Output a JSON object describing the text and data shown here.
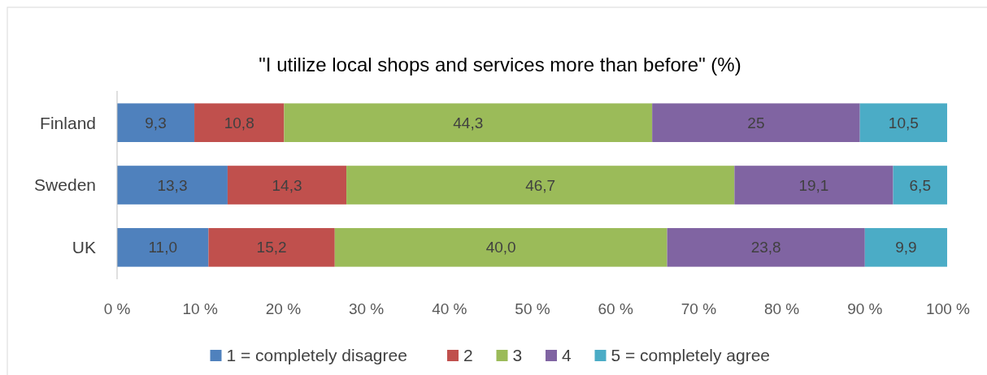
{
  "chart_data": {
    "type": "bar",
    "orientation": "horizontal",
    "stacked": true,
    "title": "\"I utilize local shops and services more than before\" (%)",
    "categories": [
      "Finland",
      "Sweden",
      "UK"
    ],
    "series": [
      {
        "name": "1 = completely disagree",
        "color": "#4f81bd",
        "values": [
          9.3,
          13.3,
          11.0
        ],
        "value_labels": [
          "9,3",
          "13,3",
          "11,0"
        ]
      },
      {
        "name": "2",
        "color": "#c0504d",
        "values": [
          10.8,
          14.3,
          15.2
        ],
        "value_labels": [
          "10,8",
          "14,3",
          "15,2"
        ]
      },
      {
        "name": "3",
        "color": "#9bbb59",
        "values": [
          44.3,
          46.7,
          40.0
        ],
        "value_labels": [
          "44,3",
          "46,7",
          "40,0"
        ]
      },
      {
        "name": "4",
        "color": "#8064a2",
        "values": [
          25,
          19.1,
          23.8
        ],
        "value_labels": [
          "25",
          "19,1",
          "23,8"
        ]
      },
      {
        "name": "5 = completely agree",
        "color": "#4bacc6",
        "values": [
          10.5,
          6.5,
          9.9
        ],
        "value_labels": [
          "10,5",
          "6,5",
          "9,9"
        ]
      }
    ],
    "xlim": [
      0,
      100
    ],
    "xticks": [
      {
        "value": 0,
        "label": "0 %"
      },
      {
        "value": 10,
        "label": "10 %"
      },
      {
        "value": 20,
        "label": "20 %"
      },
      {
        "value": 30,
        "label": "30 %"
      },
      {
        "value": 40,
        "label": "40 %"
      },
      {
        "value": 50,
        "label": "50 %"
      },
      {
        "value": 60,
        "label": "60 %"
      },
      {
        "value": 70,
        "label": "70 %"
      },
      {
        "value": 80,
        "label": "80 %"
      },
      {
        "value": 90,
        "label": "90 %"
      },
      {
        "value": 100,
        "label": "100 %"
      }
    ],
    "legend": "bottom"
  }
}
